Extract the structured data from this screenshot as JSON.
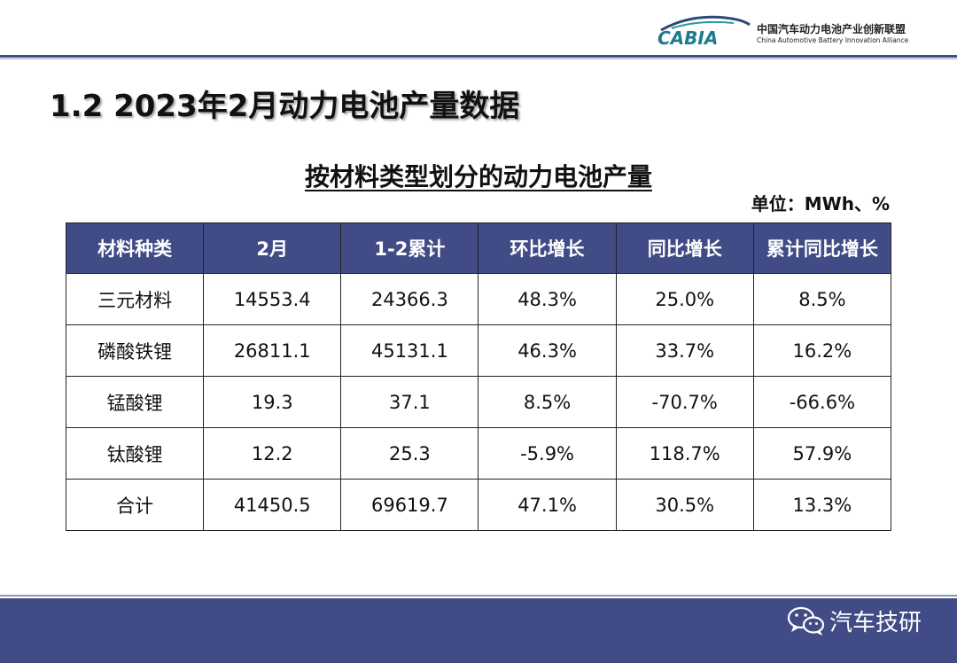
{
  "header": {
    "logo_mark": "CABIA",
    "org_cn": "中国汽车动力电池产业创新联盟",
    "org_en": "China Automotive Battery Innovation Alliance"
  },
  "page_title": "1.2 2023年2月动力电池产量数据",
  "table_title": "按材料类型划分的动力电池产量",
  "unit": "单位：MWh、%",
  "table": {
    "headers": [
      "材料种类",
      "2月",
      "1-2累计",
      "环比增长",
      "同比增长",
      "累计同比增长"
    ],
    "rows": [
      [
        "三元材料",
        "14553.4",
        "24366.3",
        "48.3%",
        "25.0%",
        "8.5%"
      ],
      [
        "磷酸铁锂",
        "26811.1",
        "45131.1",
        "46.3%",
        "33.7%",
        "16.2%"
      ],
      [
        "锰酸锂",
        "19.3",
        "37.1",
        "8.5%",
        "-70.7%",
        "-66.6%"
      ],
      [
        "钛酸锂",
        "12.2",
        "25.3",
        "-5.9%",
        "118.7%",
        "57.9%"
      ],
      [
        "合计",
        "41450.5",
        "69619.7",
        "47.1%",
        "30.5%",
        "13.3%"
      ]
    ]
  },
  "footer": {
    "brand": "汽车技研",
    "icon": "wechat-icon"
  },
  "colors": {
    "accent": "#414c86",
    "logo_teal": "#1f7a8c"
  }
}
